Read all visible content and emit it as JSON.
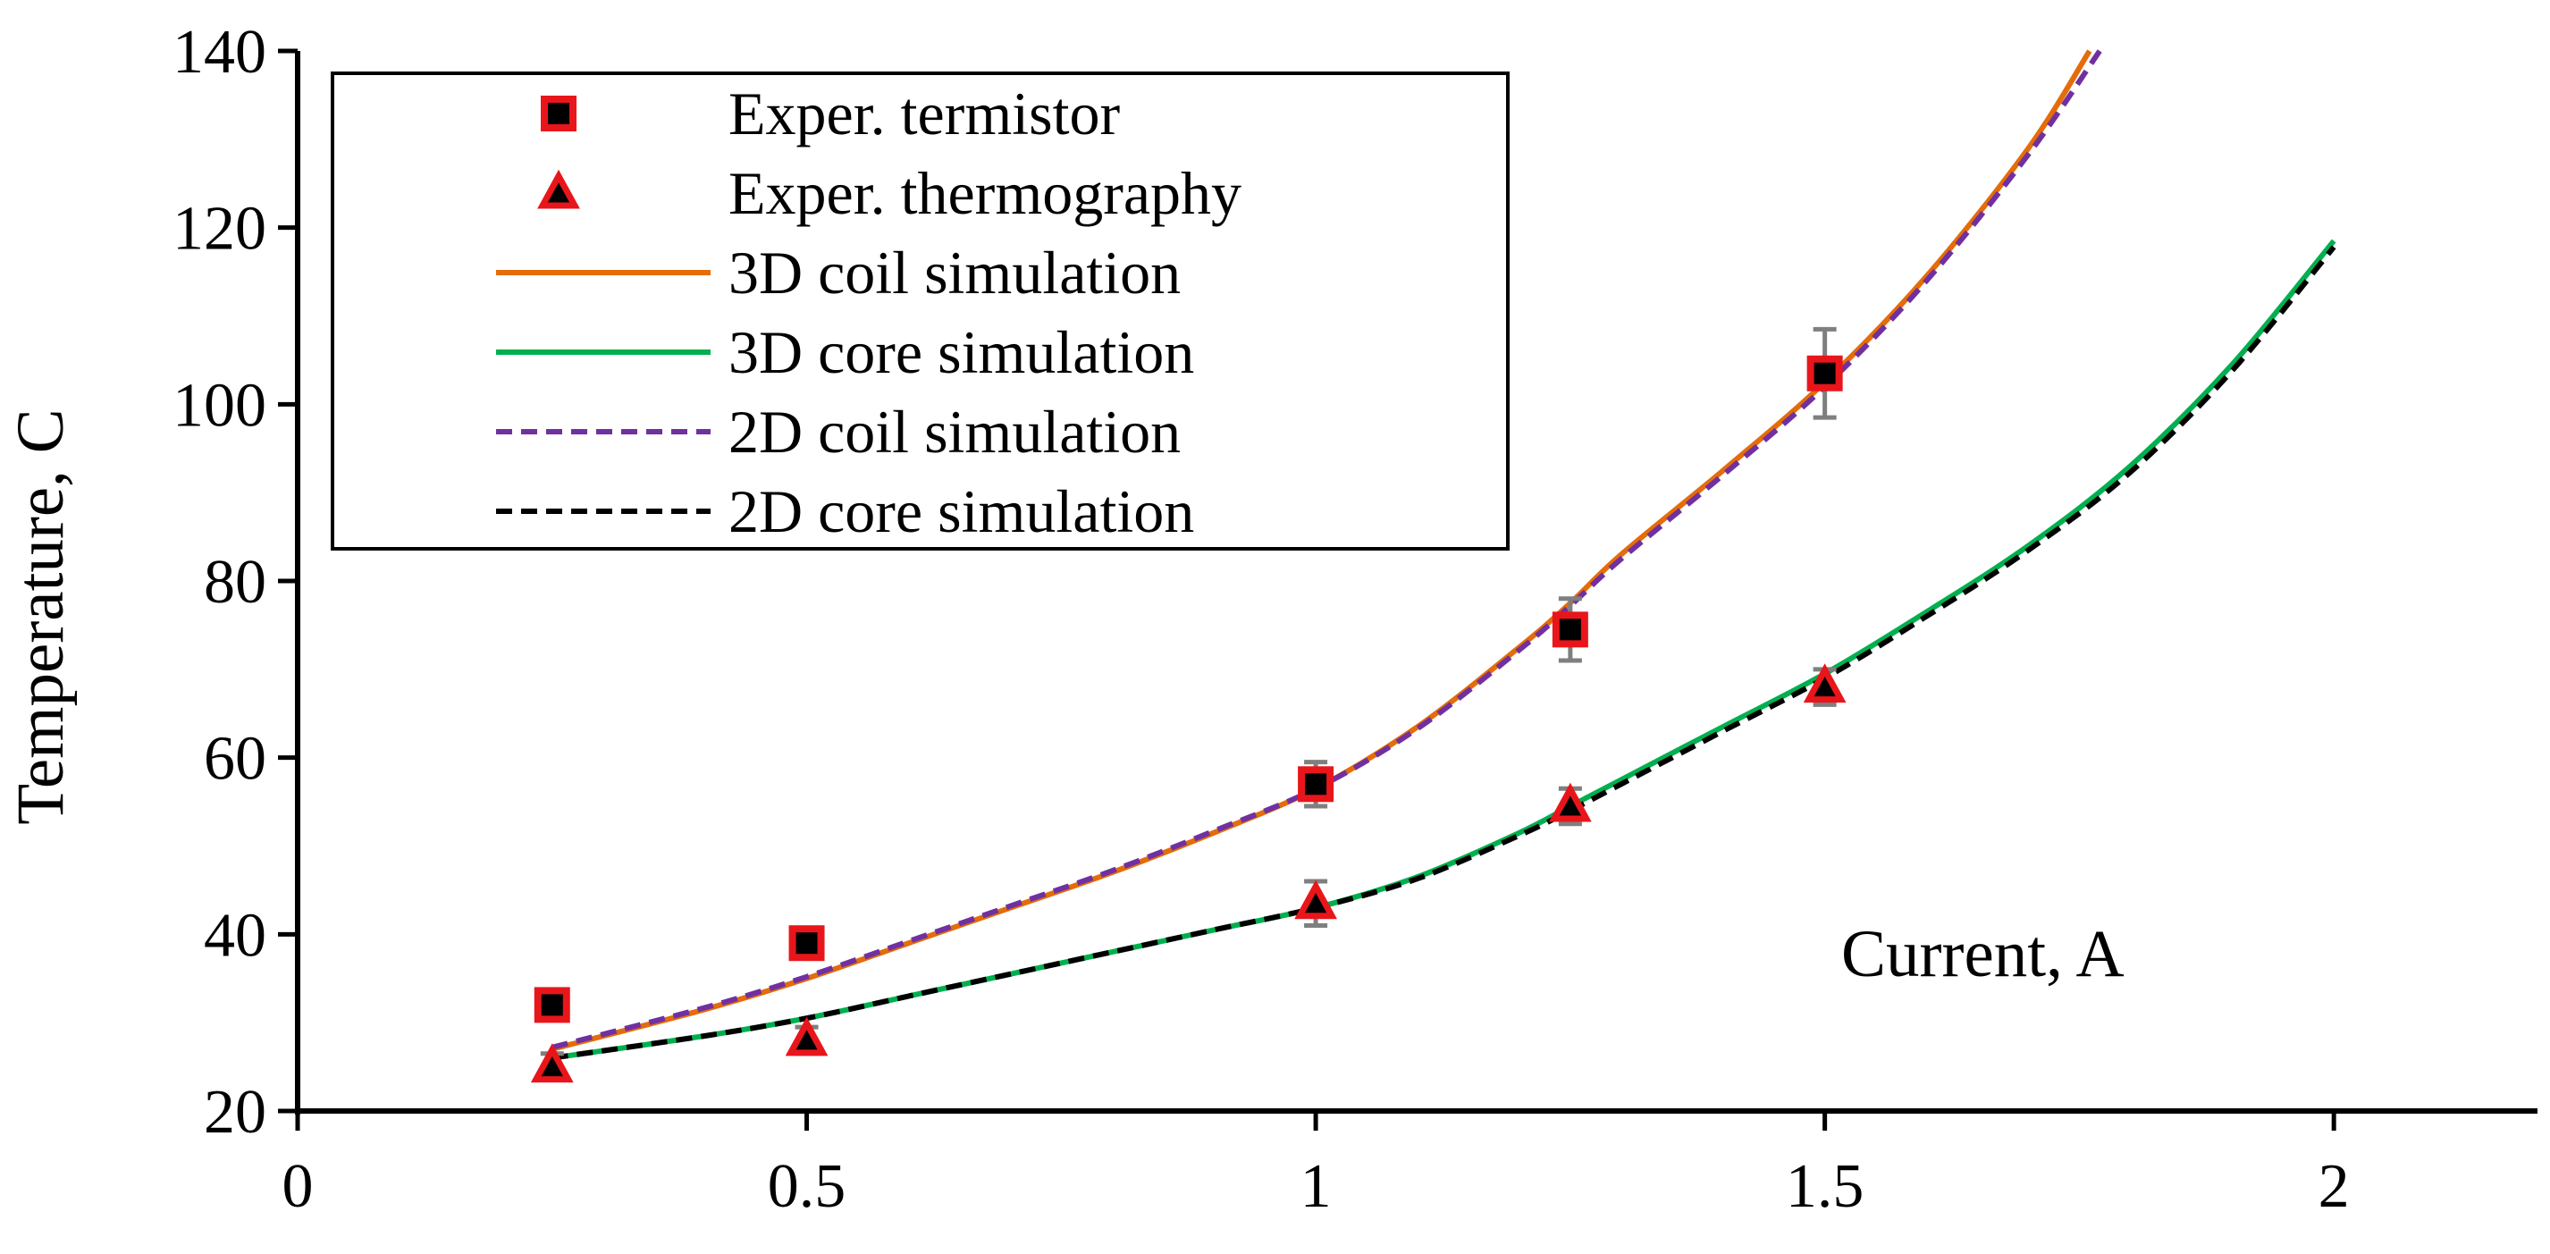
{
  "chart_data": {
    "type": "line",
    "title": "",
    "xlabel": "Current, A",
    "ylabel": "Temperature, C",
    "xlim": [
      0,
      2.2
    ],
    "ylim": [
      20,
      140
    ],
    "x_ticks": [
      0,
      0.5,
      1,
      1.5,
      2
    ],
    "x_tick_labels": [
      "0",
      "0.5",
      "1",
      "1.5",
      "2"
    ],
    "y_ticks": [
      20,
      40,
      60,
      80,
      100,
      120,
      140
    ],
    "y_tick_labels": [
      "20",
      "40",
      "60",
      "80",
      "100",
      "120",
      "140"
    ],
    "grid": false,
    "legend_position": "top-left",
    "series": [
      {
        "name": "Exper. termistor",
        "kind": "scatter",
        "marker": "square",
        "color": "#e8161b",
        "fill": "#000000",
        "x": [
          0.25,
          0.5,
          1,
          1.25,
          1.5
        ],
        "y": [
          32,
          39,
          57,
          74.5,
          103.5
        ],
        "errors": [
          0,
          0,
          2.5,
          3.5,
          5
        ]
      },
      {
        "name": "Exper. thermography",
        "kind": "scatter",
        "marker": "triangle",
        "color": "#e8161b",
        "fill": "#000000",
        "x": [
          0.25,
          0.5,
          1,
          1.25,
          1.5
        ],
        "y": [
          25,
          28,
          43.5,
          54.5,
          68
        ],
        "errors": [
          1.5,
          1.5,
          2.5,
          2,
          2
        ]
      },
      {
        "name": "3D coil simulation",
        "kind": "line",
        "dash": "solid",
        "color": "#e46c0a",
        "x": [
          0.25,
          0.4,
          0.5,
          0.6,
          0.7,
          0.8,
          0.9,
          1.0,
          1.1,
          1.2,
          1.25,
          1.3,
          1.4,
          1.5,
          1.6,
          1.7,
          1.76
        ],
        "y": [
          27,
          31.5,
          35,
          39,
          43,
          47,
          51.5,
          56.5,
          63.5,
          72.5,
          77.5,
          83,
          92.5,
          102.5,
          114.5,
          129,
          140
        ]
      },
      {
        "name": "3D core simulation",
        "kind": "line",
        "dash": "solid",
        "color": "#00b050",
        "x": [
          0.25,
          0.4,
          0.5,
          0.6,
          0.7,
          0.8,
          0.9,
          1.0,
          1.1,
          1.2,
          1.25,
          1.3,
          1.4,
          1.5,
          1.6,
          1.7,
          1.8,
          1.9,
          2.0
        ],
        "y": [
          26,
          28.5,
          30.5,
          33,
          35.5,
          38,
          40.5,
          43,
          46.5,
          51.5,
          54.5,
          57.5,
          63.5,
          69.5,
          76.5,
          84,
          93,
          104.5,
          118.5
        ]
      },
      {
        "name": "2D coil simulation",
        "kind": "line",
        "dash": "dashed",
        "color": "#7030a0",
        "x": [
          0.25,
          0.4,
          0.5,
          0.6,
          0.7,
          0.8,
          0.9,
          1.0,
          1.1,
          1.2,
          1.25,
          1.3,
          1.4,
          1.5,
          1.6,
          1.7,
          1.77
        ],
        "y": [
          27.2,
          31.7,
          35.2,
          39.2,
          43.2,
          47.2,
          51.7,
          56.5,
          63.3,
          72.2,
          77.2,
          82.5,
          92,
          102,
          114,
          128.3,
          140
        ]
      },
      {
        "name": "2D core simulation",
        "kind": "line",
        "dash": "dashed",
        "color": "#000000",
        "x": [
          0.25,
          0.4,
          0.5,
          0.6,
          0.7,
          0.8,
          0.9,
          1.0,
          1.1,
          1.2,
          1.25,
          1.3,
          1.4,
          1.5,
          1.6,
          1.7,
          1.8,
          1.9,
          2.0
        ],
        "y": [
          26,
          28.5,
          30.5,
          33,
          35.5,
          38,
          40.5,
          43,
          46.3,
          51.2,
          54,
          57,
          63,
          69,
          76,
          83.5,
          92.3,
          103.8,
          117.8
        ]
      }
    ]
  },
  "colors": {
    "errorbar": "#7f7f7f",
    "axis": "#000000",
    "background": "#ffffff"
  }
}
